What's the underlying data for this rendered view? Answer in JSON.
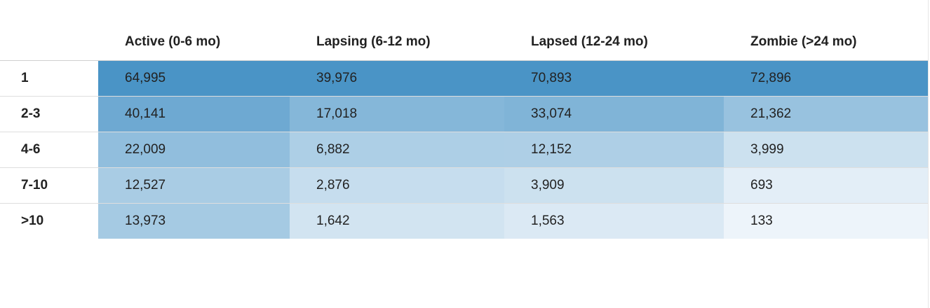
{
  "chart_data": {
    "type": "heatmap",
    "columns": [
      "Active (0-6 mo)",
      "Lapsing (6-12 mo)",
      "Lapsed (12-24 mo)",
      "Zombie (>24 mo)"
    ],
    "rows": [
      "1",
      "2-3",
      "4-6",
      "7-10",
      ">10"
    ],
    "values": [
      [
        64995,
        39976,
        70893,
        72896
      ],
      [
        40141,
        17018,
        33074,
        21362
      ],
      [
        22009,
        6882,
        12152,
        3999
      ],
      [
        12527,
        2876,
        3909,
        693
      ],
      [
        13973,
        1642,
        1563,
        133
      ]
    ],
    "value_labels": [
      [
        "64,995",
        "39,976",
        "70,893",
        "72,896"
      ],
      [
        "40,141",
        "17,018",
        "33,074",
        "21,362"
      ],
      [
        "22,009",
        "6,882",
        "12,152",
        "3,999"
      ],
      [
        "12,527",
        "2,876",
        "3,909",
        "693"
      ],
      [
        "13,973",
        "1,642",
        "1,563",
        "133"
      ]
    ],
    "color_scale": {
      "low": "#f4f8fc",
      "high": "#4a94c6",
      "scaled": "per-column"
    }
  }
}
